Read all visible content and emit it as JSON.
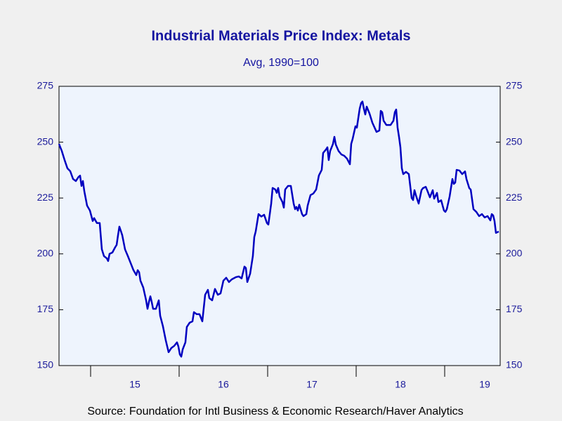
{
  "chart_data": {
    "type": "line",
    "title": "Industrial Materials Price Index: Metals",
    "subtitle": "Avg, 1990=100",
    "source": "Source:  Foundation for Intl Business & Economic Research/Haver Analytics",
    "xlim": [
      2014.643,
      2019.627
    ],
    "xticks": [
      {
        "value": 2015,
        "label": "15"
      },
      {
        "value": 2016,
        "label": "16"
      },
      {
        "value": 2017,
        "label": "17"
      },
      {
        "value": 2018,
        "label": "18"
      },
      {
        "value": 2019,
        "label": "19"
      }
    ],
    "ylim": [
      150,
      275
    ],
    "yticks": [
      150,
      175,
      200,
      225,
      250,
      275
    ],
    "y2lim": [
      150,
      275
    ],
    "y2ticks": [
      150,
      175,
      200,
      225,
      250,
      275
    ],
    "x": [
      2014.643,
      2014.675,
      2014.706,
      2014.738,
      2014.77,
      2014.802,
      2014.833,
      2014.865,
      2014.881,
      2014.897,
      2014.913,
      2014.929,
      2014.96,
      2014.992,
      2015.024,
      2015.04,
      2015.071,
      2015.103,
      2015.127,
      2015.151,
      2015.183,
      2015.198,
      2015.214,
      2015.246,
      2015.278,
      2015.294,
      2015.31,
      2015.325,
      2015.357,
      2015.389,
      2015.421,
      2015.452,
      2015.484,
      2015.516,
      2015.532,
      2015.548,
      2015.563,
      2015.595,
      2015.627,
      2015.643,
      2015.659,
      2015.675,
      2015.69,
      2015.706,
      2015.738,
      2015.77,
      2015.786,
      2015.817,
      2015.849,
      2015.881,
      2015.913,
      2015.944,
      2015.976,
      2015.992,
      2016.008,
      2016.024,
      2016.04,
      2016.071,
      2016.087,
      2016.119,
      2016.151,
      2016.167,
      2016.198,
      2016.23,
      2016.262,
      2016.294,
      2016.325,
      2016.341,
      2016.373,
      2016.405,
      2016.437,
      2016.468,
      2016.5,
      2016.532,
      2016.563,
      2016.595,
      2016.643,
      2016.675,
      2016.706,
      2016.738,
      2016.754,
      2016.77,
      2016.802,
      2016.833,
      2016.849,
      2016.865,
      2016.897,
      2016.929,
      2016.96,
      2016.992,
      2017.008,
      2017.04,
      2017.056,
      2017.087,
      2017.103,
      2017.119,
      2017.135,
      2017.167,
      2017.183,
      2017.198,
      2017.23,
      2017.262,
      2017.294,
      2017.31,
      2017.325,
      2017.341,
      2017.357,
      2017.389,
      2017.405,
      2017.437,
      2017.452,
      2017.484,
      2017.516,
      2017.548,
      2017.579,
      2017.611,
      2017.627,
      2017.659,
      2017.675,
      2017.69,
      2017.706,
      2017.738,
      2017.754,
      2017.77,
      2017.802,
      2017.833,
      2017.865,
      2017.897,
      2017.929,
      2017.944,
      2017.96,
      2017.992,
      2018.008,
      2018.04,
      2018.056,
      2018.071,
      2018.087,
      2018.103,
      2018.119,
      2018.151,
      2018.183,
      2018.23,
      2018.262,
      2018.278,
      2018.294,
      2018.31,
      2018.341,
      2018.389,
      2018.421,
      2018.437,
      2018.452,
      2018.468,
      2018.484,
      2018.5,
      2018.516,
      2018.532,
      2018.563,
      2018.595,
      2018.627,
      2018.643,
      2018.659,
      2018.675,
      2018.706,
      2018.738,
      2018.754,
      2018.786,
      2018.802,
      2018.833,
      2018.865,
      2018.881,
      2018.913,
      2018.929,
      2018.96,
      2018.992,
      2019.008,
      2019.024,
      2019.056,
      2019.087,
      2019.103,
      2019.119,
      2019.135,
      2019.167,
      2019.198,
      2019.23,
      2019.246,
      2019.278,
      2019.294,
      2019.325,
      2019.357,
      2019.389,
      2019.421,
      2019.452,
      2019.484,
      2019.516,
      2019.532,
      2019.548,
      2019.563,
      2019.579,
      2019.611
    ],
    "series": [
      {
        "name": "Metals",
        "color": "#0000c0",
        "values": [
          249.2,
          246,
          242,
          238.3,
          237,
          233.5,
          232.6,
          234.5,
          235,
          230.4,
          232.6,
          228,
          221.6,
          219.4,
          214.7,
          216,
          213.8,
          213.8,
          202,
          199,
          198,
          196.8,
          200,
          200.6,
          203,
          204,
          208.4,
          212.2,
          208.4,
          202,
          199,
          195.9,
          192.7,
          190.5,
          192.7,
          191.8,
          188,
          184.9,
          179.2,
          175.4,
          178.5,
          181,
          178.5,
          175.4,
          175.4,
          179.2,
          172.3,
          167.6,
          161.3,
          156,
          157.9,
          158.8,
          160.4,
          158.5,
          155,
          154,
          157.2,
          160.4,
          167.3,
          169.2,
          169.8,
          173.9,
          173,
          173,
          169.8,
          181.7,
          183.9,
          180.2,
          179.2,
          184.3,
          181.7,
          182.3,
          188,
          189.3,
          187.4,
          188.6,
          189.6,
          189.9,
          189,
          194.3,
          193.7,
          187.4,
          191.1,
          199,
          207.5,
          210,
          217.8,
          216.7,
          217.5,
          213.8,
          213.1,
          222.5,
          229.5,
          228.8,
          227.3,
          229.5,
          225.7,
          223.2,
          220.7,
          228.8,
          230.4,
          230.4,
          222.5,
          220,
          221,
          219.4,
          222,
          217.8,
          216.9,
          217.8,
          221.6,
          226.3,
          227,
          228.8,
          235.1,
          237.6,
          245.2,
          246.7,
          247.7,
          242,
          246,
          249.2,
          252.4,
          248.9,
          246,
          244.5,
          243.9,
          242.6,
          240.1,
          249.2,
          251.4,
          257.1,
          256.5,
          265,
          267.5,
          268.2,
          265,
          262.4,
          265.9,
          262.8,
          258.7,
          254.6,
          255.2,
          264,
          263.4,
          259.6,
          257.7,
          257.7,
          259.6,
          263.4,
          264.6,
          256.5,
          252.4,
          247.7,
          238.3,
          235.7,
          236.7,
          235.7,
          225,
          224.1,
          228.5,
          226.2,
          222.5,
          228.5,
          229.4,
          230,
          228.5,
          225.3,
          228.5,
          224.7,
          227.3,
          223.2,
          224,
          219.4,
          218.8,
          220,
          225.7,
          233.5,
          231.3,
          231.9,
          237.6,
          237.3,
          235.7,
          236.9,
          233.5,
          229.4,
          228.8,
          220,
          218.8,
          216.9,
          217.8,
          216.3,
          216.9,
          215,
          217.8,
          217.2,
          214.7,
          209.4,
          210
        ]
      }
    ]
  }
}
